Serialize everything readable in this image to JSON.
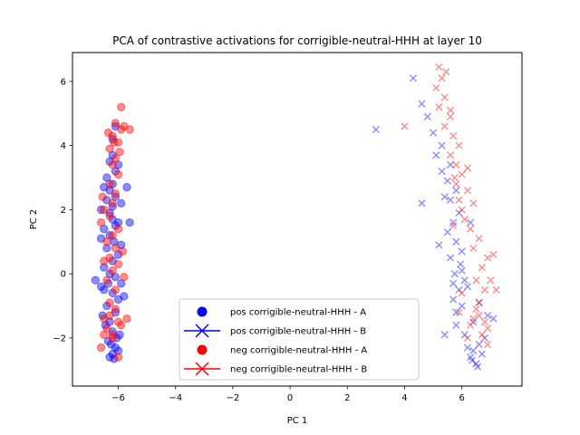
{
  "chart_data": {
    "type": "scatter",
    "title": "PCA of contrastive activations for corrigible-neutral-HHH at layer 10",
    "xlabel": "PC 1",
    "ylabel": "PC 2",
    "xlim": [
      -7.6,
      8.1
    ],
    "ylim": [
      -3.5,
      6.9
    ],
    "xticks": [
      -6,
      -4,
      -2,
      0,
      2,
      4,
      6
    ],
    "yticks": [
      -2,
      0,
      2,
      4,
      6
    ],
    "grid": false,
    "legend_position": "lower center",
    "series": [
      {
        "name": "pos corrigible-neutral-HHH - A",
        "marker": "circle",
        "color": "#0000ff",
        "points": [
          [
            -6.2,
            -2.5
          ],
          [
            -6.1,
            -2.3
          ],
          [
            -6.3,
            -2.6
          ],
          [
            -6.0,
            -2.4
          ],
          [
            -6.25,
            -2.2
          ],
          [
            -6.15,
            -2.65
          ],
          [
            -6.35,
            -2.1
          ],
          [
            -6.05,
            -2.0
          ],
          [
            -6.2,
            -1.8
          ],
          [
            -6.3,
            -1.5
          ],
          [
            -6.1,
            -1.2
          ],
          [
            -6.4,
            -1.0
          ],
          [
            -6.0,
            -0.8
          ],
          [
            -6.2,
            -0.6
          ],
          [
            -6.5,
            -0.5
          ],
          [
            -6.35,
            -0.3
          ],
          [
            -6.1,
            -0.1
          ],
          [
            -6.3,
            0.0
          ],
          [
            -6.5,
            0.2
          ],
          [
            -6.2,
            0.4
          ],
          [
            -6.0,
            0.6
          ],
          [
            -6.4,
            0.8
          ],
          [
            -6.15,
            1.0
          ],
          [
            -6.3,
            1.2
          ],
          [
            -6.1,
            1.5
          ],
          [
            -6.2,
            1.7
          ],
          [
            -6.0,
            1.6
          ],
          [
            -6.3,
            1.9
          ],
          [
            -6.2,
            2.1
          ],
          [
            -6.4,
            2.3
          ],
          [
            -6.1,
            2.4
          ],
          [
            -6.3,
            2.6
          ],
          [
            -6.2,
            2.8
          ],
          [
            -6.4,
            3.0
          ],
          [
            -6.1,
            3.2
          ],
          [
            -6.3,
            3.5
          ],
          [
            -6.2,
            3.7
          ],
          [
            -6.0,
            3.4
          ],
          [
            -6.2,
            4.2
          ],
          [
            -6.1,
            4.6
          ],
          [
            -6.8,
            -0.2
          ],
          [
            -6.6,
            -0.4
          ],
          [
            -5.9,
            -0.3
          ],
          [
            -5.8,
            -0.7
          ],
          [
            -6.55,
            -1.3
          ],
          [
            -6.45,
            -1.6
          ],
          [
            -5.95,
            -1.9
          ],
          [
            -6.6,
            1.1
          ],
          [
            -5.9,
            0.9
          ],
          [
            -6.5,
            2.7
          ],
          [
            -5.9,
            2.2
          ],
          [
            -5.6,
            1.6
          ],
          [
            -5.7,
            2.7
          ],
          [
            -6.6,
            2.0
          ],
          [
            -6.5,
            1.4
          ]
        ]
      },
      {
        "name": "pos corrigible-neutral-HHH - B",
        "marker": "x",
        "color": "#0000ff",
        "points": [
          [
            6.3,
            -2.6
          ],
          [
            6.5,
            -2.8
          ],
          [
            6.4,
            -2.4
          ],
          [
            6.6,
            -2.2
          ],
          [
            6.7,
            -2.5
          ],
          [
            6.2,
            -2.3
          ],
          [
            6.55,
            -2.9
          ],
          [
            6.35,
            -2.7
          ],
          [
            6.1,
            -1.9
          ],
          [
            5.8,
            -1.6
          ],
          [
            6.0,
            -1.0
          ],
          [
            5.7,
            -0.8
          ],
          [
            5.9,
            -0.5
          ],
          [
            6.1,
            -0.2
          ],
          [
            5.75,
            0.0
          ],
          [
            5.95,
            0.3
          ],
          [
            5.6,
            0.5
          ],
          [
            6.0,
            0.7
          ],
          [
            5.8,
            1.0
          ],
          [
            5.5,
            1.3
          ],
          [
            5.7,
            1.6
          ],
          [
            5.9,
            1.9
          ],
          [
            5.6,
            2.3
          ],
          [
            5.8,
            2.6
          ],
          [
            5.5,
            2.9
          ],
          [
            5.3,
            3.2
          ],
          [
            5.6,
            3.4
          ],
          [
            5.1,
            3.7
          ],
          [
            5.3,
            4.0
          ],
          [
            5.0,
            4.4
          ],
          [
            4.8,
            4.9
          ],
          [
            4.6,
            5.3
          ],
          [
            4.3,
            6.1
          ],
          [
            3.0,
            4.5
          ],
          [
            4.6,
            2.2
          ],
          [
            5.4,
            -1.9
          ],
          [
            6.9,
            -1.3
          ],
          [
            7.1,
            -1.4
          ],
          [
            6.6,
            -0.9
          ],
          [
            6.2,
            -0.4
          ],
          [
            6.0,
            0.1
          ],
          [
            5.7,
            -0.3
          ],
          [
            5.8,
            -1.2
          ],
          [
            6.4,
            -1.5
          ],
          [
            6.8,
            -2.0
          ],
          [
            5.2,
            0.9
          ],
          [
            6.3,
            1.6
          ],
          [
            5.4,
            2.4
          ]
        ]
      },
      {
        "name": "neg corrigible-neutral-HHH - A",
        "marker": "circle",
        "color": "#ff0000",
        "points": [
          [
            -6.2,
            -1.9
          ],
          [
            -6.4,
            -1.7
          ],
          [
            -6.0,
            -1.5
          ],
          [
            -6.3,
            -1.3
          ],
          [
            -6.1,
            -1.1
          ],
          [
            -6.5,
            -1.4
          ],
          [
            -5.9,
            -1.6
          ],
          [
            -6.2,
            -2.0
          ],
          [
            -6.3,
            -0.9
          ],
          [
            -6.1,
            -0.5
          ],
          [
            -6.4,
            -0.2
          ],
          [
            -6.2,
            0.1
          ],
          [
            -6.0,
            0.3
          ],
          [
            -6.3,
            0.5
          ],
          [
            -6.1,
            0.8
          ],
          [
            -6.4,
            1.0
          ],
          [
            -6.2,
            1.2
          ],
          [
            -6.0,
            1.4
          ],
          [
            -6.3,
            1.8
          ],
          [
            -6.5,
            2.0
          ],
          [
            -6.2,
            2.2
          ],
          [
            -6.1,
            2.5
          ],
          [
            -6.3,
            2.8
          ],
          [
            -6.0,
            3.1
          ],
          [
            -6.2,
            3.4
          ],
          [
            -6.1,
            3.6
          ],
          [
            -6.3,
            3.9
          ],
          [
            -6.0,
            4.1
          ],
          [
            -6.2,
            4.3
          ],
          [
            -5.9,
            4.5
          ],
          [
            -6.1,
            4.7
          ],
          [
            -5.8,
            4.6
          ],
          [
            -5.9,
            5.2
          ],
          [
            -5.6,
            4.5
          ],
          [
            -6.6,
            1.6
          ],
          [
            -6.5,
            0.4
          ],
          [
            -5.8,
            -0.1
          ],
          [
            -5.7,
            -1.4
          ],
          [
            -6.6,
            -2.3
          ],
          [
            -6.0,
            -2.6
          ],
          [
            -6.5,
            -1.9
          ],
          [
            -5.85,
            0.7
          ],
          [
            -6.55,
            2.4
          ],
          [
            -5.95,
            3.8
          ],
          [
            -6.35,
            4.4
          ],
          [
            -6.15,
            4.1
          ]
        ]
      },
      {
        "name": "neg corrigible-neutral-HHH - B",
        "marker": "x",
        "color": "#ff0000",
        "points": [
          [
            6.6,
            -1.3
          ],
          [
            6.8,
            -1.5
          ],
          [
            6.5,
            -1.1
          ],
          [
            6.9,
            -1.7
          ],
          [
            6.4,
            -1.4
          ],
          [
            6.7,
            -1.9
          ],
          [
            6.3,
            -1.6
          ],
          [
            6.6,
            -0.9
          ],
          [
            6.8,
            -0.5
          ],
          [
            6.5,
            -0.2
          ],
          [
            6.7,
            0.2
          ],
          [
            6.9,
            0.5
          ],
          [
            6.4,
            0.8
          ],
          [
            6.6,
            1.1
          ],
          [
            6.3,
            1.4
          ],
          [
            6.1,
            1.7
          ],
          [
            6.0,
            2.0
          ],
          [
            5.9,
            2.3
          ],
          [
            6.2,
            2.6
          ],
          [
            5.8,
            2.8
          ],
          [
            6.0,
            3.1
          ],
          [
            5.8,
            3.4
          ],
          [
            5.6,
            3.7
          ],
          [
            5.9,
            4.0
          ],
          [
            5.7,
            4.3
          ],
          [
            5.4,
            4.6
          ],
          [
            5.6,
            4.9
          ],
          [
            5.2,
            5.2
          ],
          [
            5.4,
            5.5
          ],
          [
            5.1,
            5.8
          ],
          [
            5.3,
            6.1
          ],
          [
            5.2,
            6.45
          ],
          [
            5.45,
            6.3
          ],
          [
            4.0,
            4.6
          ],
          [
            6.2,
            3.3
          ],
          [
            6.4,
            2.2
          ],
          [
            5.7,
            1.5
          ],
          [
            7.1,
            0.6
          ],
          [
            7.2,
            -0.5
          ],
          [
            7.0,
            -0.2
          ],
          [
            6.0,
            -0.6
          ],
          [
            5.9,
            -1.2
          ],
          [
            6.2,
            -2.0
          ],
          [
            6.9,
            -2.2
          ],
          [
            5.6,
            5.1
          ],
          [
            5.75,
            3.0
          ]
        ]
      }
    ]
  }
}
